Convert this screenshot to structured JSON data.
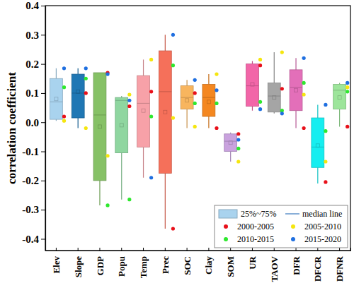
{
  "chart_data": {
    "type": "box",
    "y_label": "correlation coefficient",
    "categories": [
      "Elev",
      "Slope",
      "GDP",
      "Popu",
      "Temp",
      "Prec",
      "SOC",
      "Clay",
      "SOM",
      "UR",
      "TAOV",
      "DFR",
      "DFCR",
      "DFNR"
    ],
    "colors": [
      "#a9d3ee",
      "#1f77b4",
      "#86c166",
      "#8fd6a0",
      "#f7a1a8",
      "#f5705a",
      "#f8b55e",
      "#f48720",
      "#c9a2de",
      "#f266a8",
      "#a5a5a5",
      "#e36fb9",
      "#15eef0",
      "#9de59b"
    ],
    "whisker_low": [
      0.005,
      -0.02,
      -0.285,
      -0.265,
      -0.19,
      -0.365,
      -0.02,
      -0.02,
      -0.135,
      0.04,
      0.03,
      -0.02,
      -0.21,
      -0.015
    ],
    "q1": [
      0.01,
      0.015,
      -0.2,
      -0.105,
      -0.085,
      -0.175,
      0.045,
      0.02,
      -0.1,
      0.055,
      0.035,
      0.04,
      -0.155,
      0.045
    ],
    "median": [
      0.07,
      0.1,
      0.025,
      0.075,
      0.065,
      0.105,
      0.085,
      0.085,
      -0.065,
      0.125,
      0.09,
      0.12,
      -0.085,
      0.11
    ],
    "q3": [
      0.15,
      0.165,
      0.17,
      0.085,
      0.16,
      0.245,
      0.125,
      0.13,
      -0.04,
      0.2,
      0.135,
      0.18,
      0.015,
      0.13
    ],
    "whisker_high": [
      0.185,
      0.185,
      0.17,
      0.09,
      0.215,
      0.3,
      0.145,
      0.165,
      -0.035,
      0.21,
      0.24,
      0.22,
      0.06,
      0.135
    ],
    "mean": [
      0.08,
      0.105,
      -0.015,
      -0.01,
      0.04,
      0.035,
      0.075,
      0.07,
      -0.07,
      0.13,
      0.085,
      0.11,
      -0.08,
      0.085
    ],
    "series": [
      {
        "name": "2000-2005",
        "color": "#e8101a",
        "marker": "circle",
        "values": [
          0.02,
          0.1,
          0.17,
          0.055,
          0.105,
          -0.365,
          0.1,
          -0.02,
          -0.04,
          0.195,
          0.115,
          -0.02,
          -0.205,
          -0.015
        ]
      },
      {
        "name": "2005-2010",
        "color": "#f5e60f",
        "marker": "circle",
        "values": [
          0.005,
          -0.02,
          -0.115,
          0.095,
          0.215,
          0.015,
          -0.015,
          0.165,
          -0.135,
          0.215,
          0.24,
          0.095,
          -0.135,
          0.12
        ]
      },
      {
        "name": "2010-2015",
        "color": "#2ee82e",
        "marker": "circle",
        "values": [
          0.12,
          0.15,
          -0.285,
          -0.265,
          0.02,
          0.195,
          0.065,
          0.065,
          -0.09,
          0.07,
          0.04,
          0.135,
          -0.03,
          0.105
        ]
      },
      {
        "name": "2015-2020",
        "color": "#1f6fe0",
        "marker": "circle",
        "values": [
          0.185,
          0.185,
          0.165,
          0.075,
          -0.19,
          0.3,
          0.145,
          0.11,
          -0.06,
          0.045,
          0.03,
          0.22,
          0.06,
          0.135
        ]
      }
    ],
    "box_label": "25%~75%",
    "median_label": "median line",
    "ylim": [
      -0.44,
      0.4
    ],
    "yticks": [
      -0.4,
      -0.3,
      -0.2,
      -0.1,
      {
        "value": 0,
        "label": "0.0"
      },
      0.1,
      0.2,
      0.3,
      0.4
    ],
    "legend": "lower right",
    "grid": false
  }
}
